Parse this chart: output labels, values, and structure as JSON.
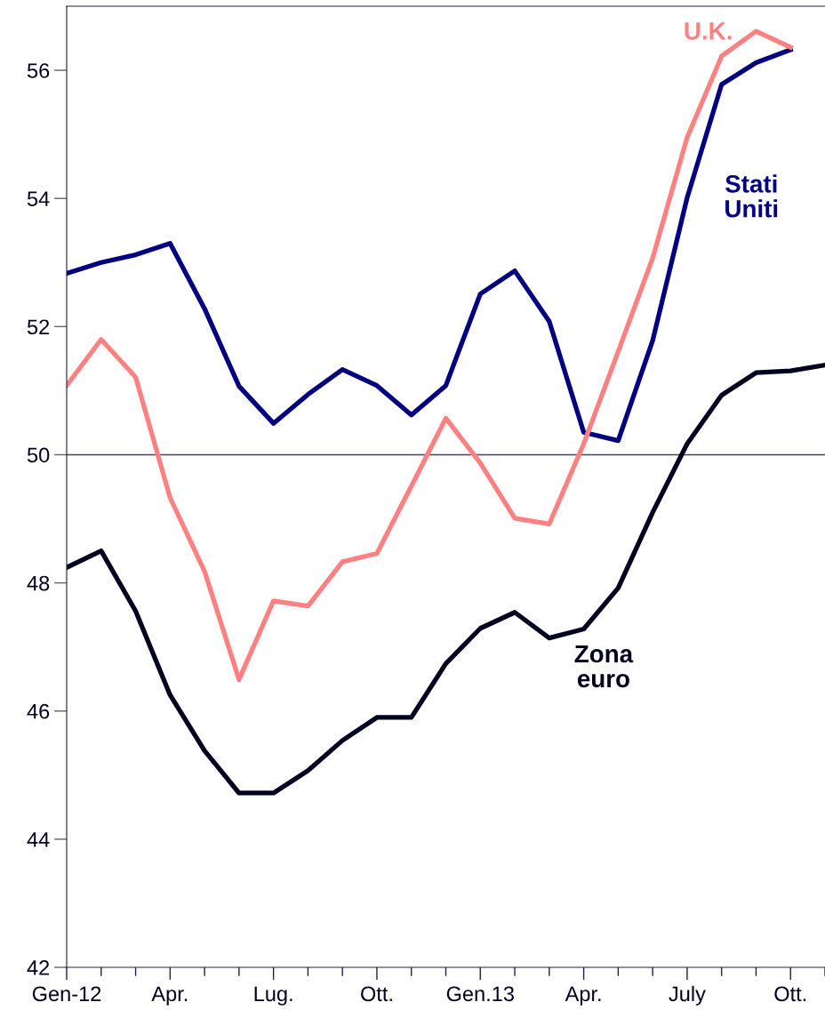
{
  "chart_data": {
    "type": "line",
    "categories": [
      "Gen-12",
      null,
      null,
      "Apr.",
      null,
      null,
      "Lug.",
      null,
      null,
      "Ott.",
      null,
      null,
      "Gen.13",
      null,
      null,
      "Apr.",
      null,
      null,
      "July",
      null,
      null,
      "Ott.",
      null
    ],
    "series": [
      {
        "name": "Stati Uniti",
        "color": "#000080",
        "values": [
          52.83,
          53.0,
          53.12,
          53.3,
          52.28,
          51.07,
          50.49,
          50.94,
          51.33,
          51.08,
          50.62,
          51.08,
          52.51,
          52.87,
          52.08,
          50.35,
          50.22,
          51.78,
          54.01,
          55.78,
          56.12,
          56.32,
          null
        ]
      },
      {
        "name": "U.K.",
        "color": "#ff8080",
        "values": [
          51.08,
          51.8,
          51.21,
          49.33,
          48.18,
          46.49,
          47.72,
          47.64,
          48.33,
          48.46,
          49.51,
          50.57,
          49.87,
          49.01,
          48.92,
          50.17,
          51.61,
          53.07,
          54.95,
          56.22,
          56.61,
          56.36,
          null
        ]
      },
      {
        "name": "Zona euro",
        "color": "#00001f",
        "values": [
          48.24,
          48.5,
          47.56,
          46.25,
          45.38,
          44.72,
          44.72,
          45.07,
          45.54,
          45.9,
          45.9,
          46.74,
          47.29,
          47.54,
          47.14,
          47.28,
          47.92,
          49.1,
          50.17,
          50.93,
          51.28,
          51.31,
          51.4
        ]
      }
    ],
    "ylim": [
      42,
      57
    ],
    "yticks": [
      42,
      44,
      46,
      48,
      50,
      52,
      54,
      56
    ],
    "ref_lines": [
      {
        "axis": "y",
        "value": 50,
        "color": "#404060"
      }
    ],
    "grid": false,
    "legend": false,
    "marker": "none",
    "line_style": "solid"
  }
}
